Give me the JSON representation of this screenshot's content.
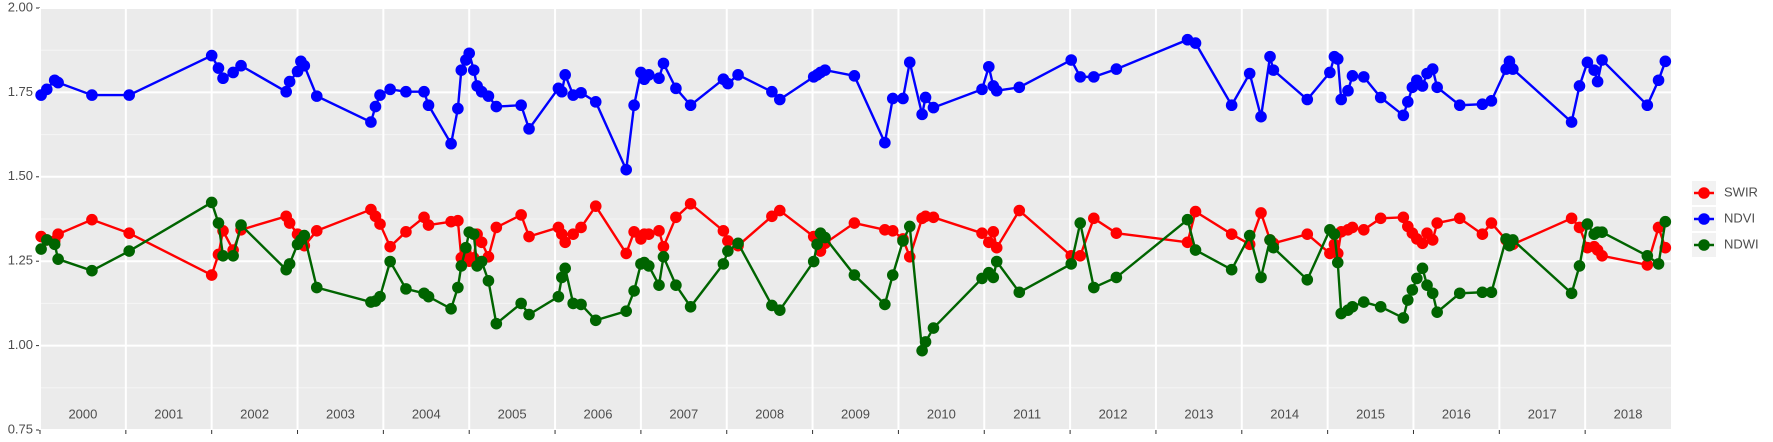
{
  "chart_data": {
    "type": "line",
    "x": [
      2000.013,
      2000.079,
      2000.171,
      2000.211,
      2000.605,
      2001.039,
      2002.0,
      2002.079,
      2002.132,
      2002.25,
      2002.342,
      2002.868,
      2002.908,
      2003.0,
      2003.039,
      2003.079,
      2003.224,
      2003.855,
      2003.908,
      2003.961,
      2004.079,
      2004.263,
      2004.474,
      2004.526,
      2004.789,
      2004.868,
      2004.908,
      2004.961,
      2005.0,
      2005.053,
      2005.092,
      2005.145,
      2005.224,
      2005.316,
      2005.605,
      2005.697,
      2006.039,
      2006.079,
      2006.118,
      2006.211,
      2006.303,
      2006.474,
      2006.829,
      2006.921,
      2007.0,
      2007.039,
      2007.092,
      2007.211,
      2007.263,
      2007.408,
      2007.579,
      2007.961,
      2008.013,
      2008.132,
      2008.526,
      2008.618,
      2009.013,
      2009.053,
      2009.092,
      2009.145,
      2009.487,
      2009.842,
      2009.934,
      2010.053,
      2010.132,
      2010.276,
      2010.316,
      2010.408,
      2010.974,
      2011.053,
      2011.105,
      2011.145,
      2011.408,
      2012.013,
      2012.118,
      2012.276,
      2012.539,
      2013.368,
      2013.461,
      2013.882,
      2014.092,
      2014.224,
      2014.329,
      2014.368,
      2014.763,
      2015.026,
      2015.079,
      2015.118,
      2015.158,
      2015.237,
      2015.289,
      2015.421,
      2015.618,
      2015.882,
      2015.934,
      2015.987,
      2016.039,
      2016.105,
      2016.158,
      2016.224,
      2016.276,
      2016.539,
      2016.803,
      2016.908,
      2017.079,
      2017.118,
      2017.158,
      2017.842,
      2017.934,
      2018.026,
      2018.105,
      2018.145,
      2018.197,
      2018.724,
      2018.855,
      2018.934
    ],
    "series": [
      {
        "name": "SWIR",
        "color": "#ff0000",
        "values": [
          1.323,
          1.313,
          1.31,
          1.33,
          1.373,
          1.333,
          1.209,
          1.27,
          1.34,
          1.283,
          1.343,
          1.383,
          1.363,
          1.33,
          1.32,
          1.296,
          1.34,
          1.403,
          1.383,
          1.36,
          1.293,
          1.337,
          1.38,
          1.357,
          1.367,
          1.37,
          1.26,
          1.276,
          1.25,
          1.26,
          1.33,
          1.306,
          1.263,
          1.35,
          1.387,
          1.323,
          1.35,
          1.33,
          1.306,
          1.33,
          1.35,
          1.413,
          1.273,
          1.337,
          1.316,
          1.33,
          1.33,
          1.34,
          1.293,
          1.38,
          1.42,
          1.34,
          1.31,
          1.296,
          1.383,
          1.4,
          1.323,
          1.3,
          1.28,
          1.303,
          1.363,
          1.343,
          1.34,
          1.316,
          1.263,
          1.377,
          1.383,
          1.38,
          1.333,
          1.306,
          1.337,
          1.29,
          1.4,
          1.266,
          1.266,
          1.377,
          1.333,
          1.306,
          1.397,
          1.33,
          1.3,
          1.393,
          1.313,
          1.303,
          1.33,
          1.273,
          1.3,
          1.273,
          1.337,
          1.343,
          1.35,
          1.343,
          1.377,
          1.38,
          1.353,
          1.333,
          1.316,
          1.303,
          1.333,
          1.313,
          1.363,
          1.377,
          1.33,
          1.363,
          1.313,
          1.31,
          1.3,
          1.377,
          1.35,
          1.29,
          1.293,
          1.283,
          1.266,
          1.239,
          1.35,
          1.29
        ]
      },
      {
        "name": "NDVI",
        "color": "#0000ff",
        "values": [
          1.742,
          1.759,
          1.786,
          1.779,
          1.742,
          1.742,
          1.859,
          1.822,
          1.792,
          1.809,
          1.829,
          1.752,
          1.782,
          1.812,
          1.842,
          1.829,
          1.739,
          1.662,
          1.708,
          1.742,
          1.759,
          1.752,
          1.752,
          1.712,
          1.598,
          1.702,
          1.816,
          1.846,
          1.866,
          1.816,
          1.769,
          1.752,
          1.739,
          1.708,
          1.712,
          1.642,
          1.762,
          1.752,
          1.802,
          1.742,
          1.749,
          1.722,
          1.521,
          1.712,
          1.809,
          1.789,
          1.802,
          1.792,
          1.836,
          1.762,
          1.712,
          1.789,
          1.776,
          1.802,
          1.752,
          1.729,
          1.796,
          1.802,
          1.809,
          1.816,
          1.799,
          1.601,
          1.732,
          1.732,
          1.839,
          1.685,
          1.735,
          1.705,
          1.759,
          1.826,
          1.769,
          1.755,
          1.765,
          1.846,
          1.796,
          1.796,
          1.819,
          1.906,
          1.896,
          1.712,
          1.806,
          1.678,
          1.856,
          1.816,
          1.729,
          1.809,
          1.856,
          1.849,
          1.729,
          1.755,
          1.799,
          1.796,
          1.735,
          1.682,
          1.722,
          1.765,
          1.786,
          1.769,
          1.806,
          1.819,
          1.765,
          1.712,
          1.715,
          1.725,
          1.819,
          1.842,
          1.819,
          1.662,
          1.769,
          1.839,
          1.816,
          1.782,
          1.846,
          1.712,
          1.786,
          1.842
        ]
      },
      {
        "name": "NDWI",
        "color": "#006400",
        "values": [
          1.286,
          1.313,
          1.3,
          1.256,
          1.222,
          1.28,
          1.424,
          1.363,
          1.266,
          1.266,
          1.357,
          1.225,
          1.242,
          1.3,
          1.313,
          1.326,
          1.172,
          1.129,
          1.132,
          1.145,
          1.249,
          1.168,
          1.155,
          1.145,
          1.109,
          1.172,
          1.236,
          1.29,
          1.336,
          1.33,
          1.236,
          1.249,
          1.192,
          1.065,
          1.125,
          1.092,
          1.145,
          1.202,
          1.229,
          1.125,
          1.122,
          1.075,
          1.102,
          1.162,
          1.242,
          1.246,
          1.236,
          1.179,
          1.263,
          1.179,
          1.115,
          1.242,
          1.28,
          1.303,
          1.119,
          1.105,
          1.249,
          1.3,
          1.333,
          1.32,
          1.209,
          1.122,
          1.209,
          1.31,
          1.353,
          0.985,
          1.011,
          1.052,
          1.199,
          1.216,
          1.202,
          1.249,
          1.158,
          1.242,
          1.363,
          1.172,
          1.202,
          1.373,
          1.283,
          1.225,
          1.326,
          1.202,
          1.313,
          1.29,
          1.195,
          1.343,
          1.33,
          1.246,
          1.095,
          1.105,
          1.115,
          1.129,
          1.115,
          1.082,
          1.135,
          1.165,
          1.199,
          1.229,
          1.179,
          1.155,
          1.099,
          1.155,
          1.158,
          1.158,
          1.316,
          1.296,
          1.313,
          1.155,
          1.236,
          1.36,
          1.33,
          1.336,
          1.336,
          1.266,
          1.242,
          1.367
        ]
      }
    ],
    "xlim": [
      2000,
      2019
    ],
    "xticks": [
      2000,
      2001,
      2002,
      2003,
      2004,
      2005,
      2006,
      2007,
      2008,
      2009,
      2010,
      2011,
      2012,
      2013,
      2014,
      2015,
      2016,
      2017,
      2018
    ],
    "ylim": [
      0.75,
      2.0
    ],
    "yticks": [
      {
        "value": 0.75,
        "label": "0.75"
      },
      {
        "value": 1.0,
        "label": "1.00"
      },
      {
        "value": 1.25,
        "label": "1.25"
      },
      {
        "value": 1.5,
        "label": "1.50"
      },
      {
        "value": 1.75,
        "label": "1.75"
      },
      {
        "value": 2.0,
        "label": "2.00"
      }
    ],
    "grid": true,
    "legend": "right"
  }
}
